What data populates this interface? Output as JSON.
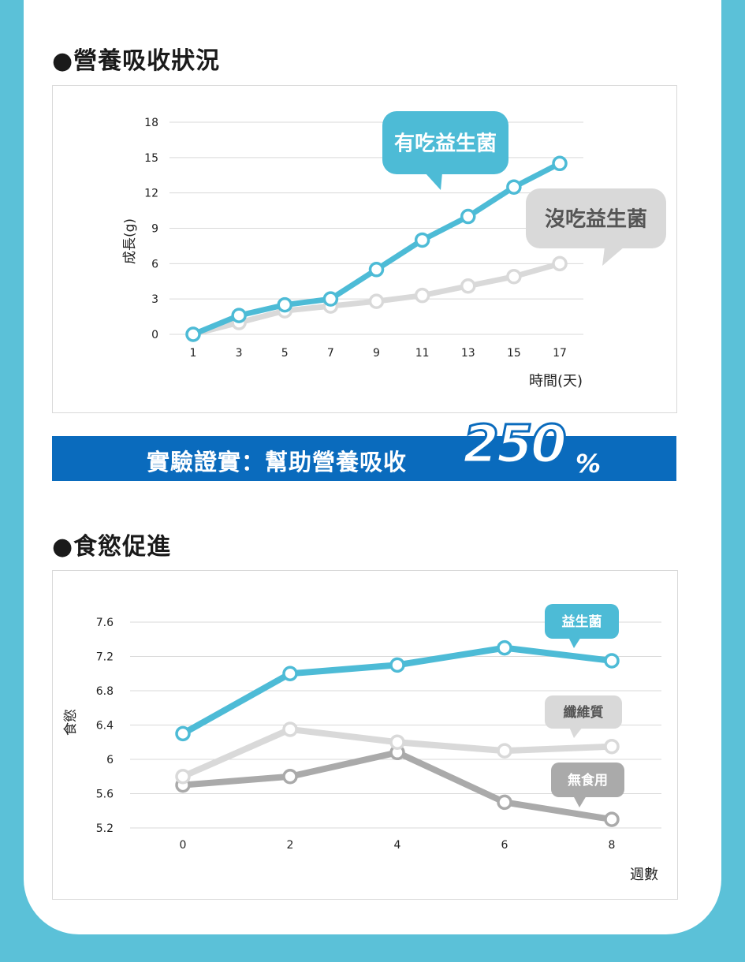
{
  "section1": {
    "title": "●營養吸收狀況"
  },
  "section2": {
    "title": "●食慾促進"
  },
  "banner": {
    "text": "實驗證實：幫助營養吸收",
    "big": "250",
    "pct": "%"
  },
  "colors": {
    "blue": "#4dbbd6",
    "lightgray": "#d9d9d9",
    "gray": "#aaaaaa",
    "banner": "#0a6bbd",
    "frame": "#5bc1d8"
  },
  "chart_data": [
    {
      "type": "line",
      "title": "",
      "xlabel": "時間(天)",
      "ylabel": "成長(g)",
      "x": [
        1,
        3,
        5,
        7,
        9,
        11,
        13,
        15,
        17
      ],
      "ylim": [
        0,
        18
      ],
      "yticks": [
        0,
        3,
        6,
        9,
        12,
        15,
        18
      ],
      "grid": true,
      "series": [
        {
          "name": "有吃益生菌",
          "color": "#4dbbd6",
          "values": [
            0,
            1.6,
            2.5,
            3.0,
            5.5,
            8.0,
            10.0,
            12.5,
            14.5
          ]
        },
        {
          "name": "沒吃益生菌",
          "color": "#d9d9d9",
          "values": [
            0,
            1.0,
            2.0,
            2.4,
            2.8,
            3.3,
            4.1,
            4.9,
            6.0
          ]
        }
      ]
    },
    {
      "type": "line",
      "title": "",
      "xlabel": "週數",
      "ylabel": "食慾",
      "x": [
        0,
        2,
        4,
        6,
        8
      ],
      "ylim": [
        5.2,
        7.6
      ],
      "yticks": [
        5.2,
        5.6,
        6.0,
        6.4,
        6.8,
        7.2,
        7.6
      ],
      "grid": true,
      "series": [
        {
          "name": "益生菌",
          "color": "#4dbbd6",
          "values": [
            6.3,
            7.0,
            7.1,
            7.3,
            7.15
          ]
        },
        {
          "name": "纖維質",
          "color": "#d9d9d9",
          "values": [
            5.8,
            6.35,
            6.2,
            6.1,
            6.15
          ]
        },
        {
          "name": "無食用",
          "color": "#aaaaaa",
          "values": [
            5.7,
            5.8,
            6.08,
            5.5,
            5.3
          ]
        }
      ]
    }
  ]
}
